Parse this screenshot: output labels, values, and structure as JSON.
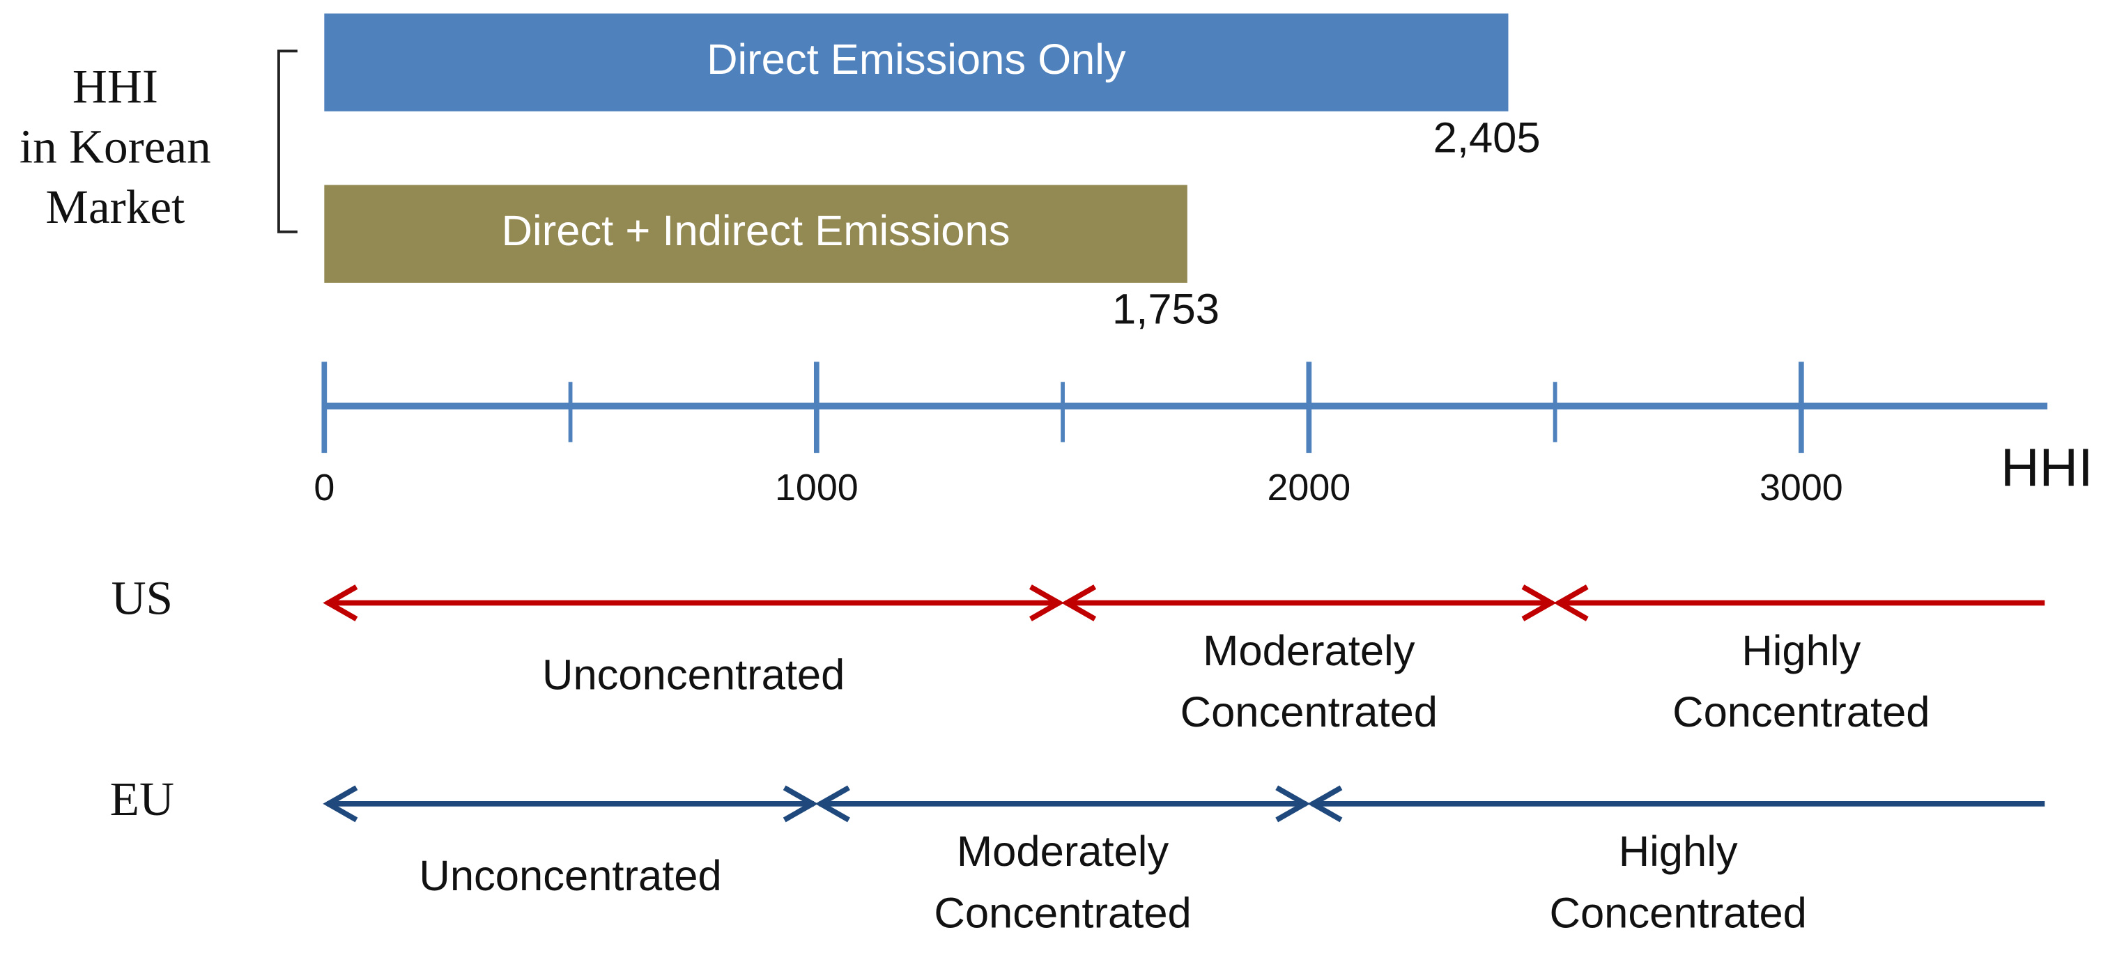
{
  "chart_data": {
    "type": "bar",
    "orientation": "horizontal",
    "group_label": [
      "HHI",
      "in Korean",
      "Market"
    ],
    "categories": [
      "Direct Emissions Only",
      "Direct + Indirect Emissions"
    ],
    "values": [
      2405,
      1753
    ],
    "value_labels": [
      "2,405",
      "1,753"
    ],
    "colors": [
      "#4f81bd",
      "#938953"
    ],
    "xlabel": "HHI",
    "xlim": [
      0,
      3500
    ],
    "xticks": [
      0,
      1000,
      2000,
      3000
    ],
    "minor_xticks": [
      500,
      1500,
      2500
    ],
    "axis_color": "#4f81bd",
    "bands": [
      {
        "name": "US",
        "color": "#c00000",
        "ranges": [
          {
            "from": 0,
            "to": 1500,
            "label": [
              "Unconcentrated"
            ]
          },
          {
            "from": 1500,
            "to": 2500,
            "label": [
              "Moderately",
              "Concentrated"
            ]
          },
          {
            "from": 2500,
            "to": 3500,
            "label": [
              "Highly",
              "Concentrated"
            ]
          }
        ]
      },
      {
        "name": "EU",
        "color": "#1f497d",
        "ranges": [
          {
            "from": 0,
            "to": 1000,
            "label": [
              "Unconcentrated"
            ]
          },
          {
            "from": 1000,
            "to": 2000,
            "label": [
              "Moderately",
              "Concentrated"
            ]
          },
          {
            "from": 2000,
            "to": 3500,
            "label": [
              "Highly",
              "Concentrated"
            ]
          }
        ]
      }
    ]
  }
}
